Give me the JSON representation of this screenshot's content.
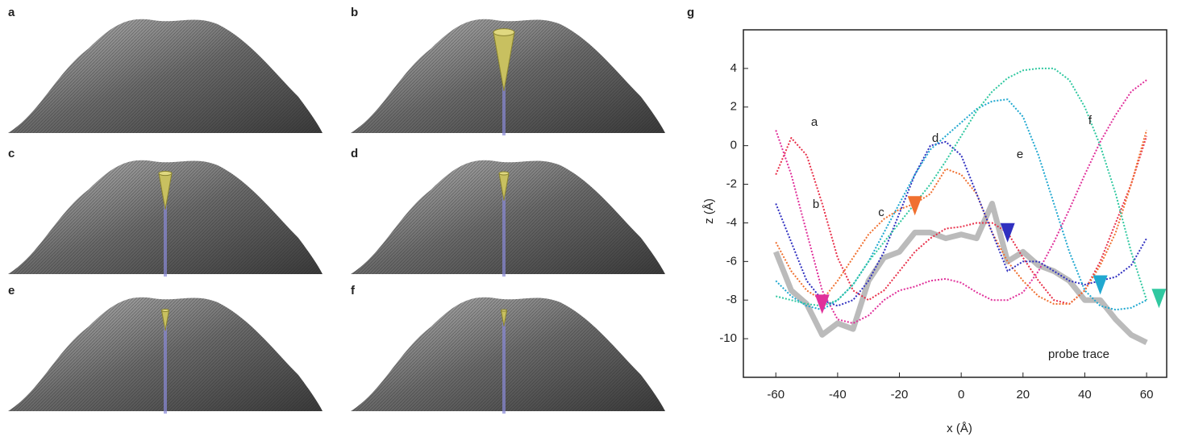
{
  "panels": [
    {
      "label": "a"
    },
    {
      "label": "b"
    },
    {
      "label": "c"
    },
    {
      "label": "d"
    },
    {
      "label": "e"
    },
    {
      "label": "f"
    }
  ],
  "chart_data": {
    "type": "line",
    "panel_label": "g",
    "xlabel": "x (Å)",
    "ylabel": "z (Å)",
    "xlim": [
      -70.5,
      66.5
    ],
    "ylim": [
      -12,
      6
    ],
    "xticks": [
      -60,
      -40,
      -20,
      0,
      20,
      40,
      60
    ],
    "yticks": [
      4,
      2,
      0,
      -2,
      -4,
      -6,
      -8,
      -10
    ],
    "x": [
      -60,
      -55,
      -50,
      -45,
      -40,
      -35,
      -30,
      -25,
      -20,
      -15,
      -10,
      -5,
      0,
      5,
      10,
      15,
      20,
      25,
      30,
      35,
      40,
      45,
      50,
      55,
      60
    ],
    "series": [
      {
        "name": "a",
        "color": "#e8304a",
        "values": [
          -1.5,
          0.4,
          -0.5,
          -3,
          -5.8,
          -7.5,
          -8,
          -7.5,
          -6.5,
          -5.5,
          -4.8,
          -4.3,
          -4.2,
          -4.0,
          -4.0,
          -4.5,
          -5.8,
          -7.0,
          -8.0,
          -8.2,
          -7.5,
          -6.0,
          -4.0,
          -2.0,
          0.5
        ]
      },
      {
        "name": "b",
        "color": "#e0309a",
        "values": [
          0.8,
          -1.5,
          -4.5,
          -7.5,
          -9,
          -9.2,
          -8.8,
          -8.0,
          -7.5,
          -7.3,
          -7.0,
          -6.9,
          -7.1,
          -7.6,
          -8.0,
          -8.0,
          -7.6,
          -6.5,
          -5.0,
          -3.3,
          -1.5,
          0.2,
          1.6,
          2.8,
          3.4
        ]
      },
      {
        "name": "c",
        "color": "#f07030",
        "values": [
          -5,
          -6.5,
          -7.5,
          -8,
          -7,
          -5.8,
          -4.6,
          -3.8,
          -3.3,
          -3.0,
          -2.5,
          -1.2,
          -1.5,
          -2.5,
          -4.5,
          -6,
          -7,
          -7.8,
          -8.2,
          -8.2,
          -7.5,
          -6.2,
          -4.5,
          -2.0,
          0.8
        ]
      },
      {
        "name": "d",
        "color": "#3030c0",
        "values": [
          -3,
          -5,
          -7,
          -8,
          -8.3,
          -8,
          -7,
          -5.5,
          -3.5,
          -1.5,
          0,
          0.2,
          -0.5,
          -2.5,
          -4.5,
          -6.5,
          -6.0,
          -6.0,
          -6.5,
          -7.0,
          -7.2,
          -7.0,
          -6.8,
          -6.2,
          -4.8
        ]
      },
      {
        "name": "e",
        "color": "#20a8d0",
        "values": [
          -7,
          -7.8,
          -8.3,
          -8.5,
          -8,
          -7.2,
          -6,
          -4.5,
          -3,
          -1.5,
          -0.2,
          0.5,
          1.2,
          1.9,
          2.3,
          2.4,
          1.5,
          -0.5,
          -3,
          -5.5,
          -7.5,
          -8.3,
          -8.5,
          -8.4,
          -8.0
        ]
      },
      {
        "name": "f",
        "color": "#30c8a0",
        "values": [
          -7.8,
          -8.0,
          -8.2,
          -8.3,
          -8,
          -7.2,
          -6,
          -5,
          -4,
          -3,
          -2,
          -0.8,
          0.5,
          1.8,
          2.8,
          3.5,
          3.9,
          4.0,
          4.0,
          3.4,
          2,
          0,
          -2.5,
          -5.5,
          -8.0
        ]
      },
      {
        "name": "probe trace",
        "color": "#bbbbbb",
        "values": [
          -5.5,
          -7.5,
          -8.2,
          -9.8,
          -9.2,
          -9.5,
          -7.0,
          -5.8,
          -5.5,
          -4.5,
          -4.5,
          -4.8,
          -4.6,
          -4.8,
          -3.0,
          -6,
          -5.5,
          -6.2,
          -6.5,
          -7.0,
          -8.0,
          -8,
          -9,
          -9.8,
          -10.2
        ]
      }
    ],
    "probe_markers": [
      {
        "x": -45,
        "y": -8.3,
        "color": "#e0309a"
      },
      {
        "x": -15,
        "y": -3.2,
        "color": "#f07030"
      },
      {
        "x": 15,
        "y": -4.6,
        "color": "#3030c0"
      },
      {
        "x": 45,
        "y": -7.3,
        "color": "#20a8d0"
      },
      {
        "x": 64,
        "y": -8.0,
        "color": "#30c8a0"
      }
    ]
  }
}
